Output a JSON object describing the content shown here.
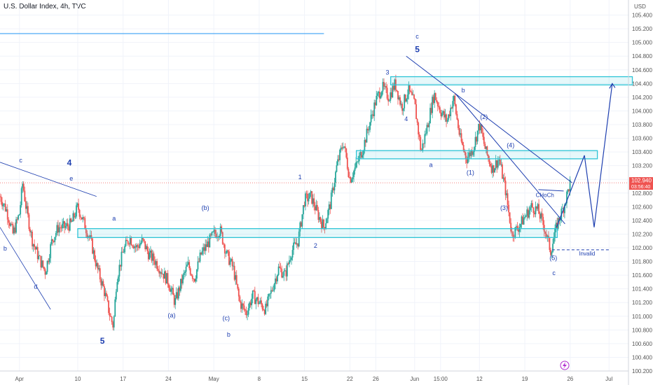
{
  "title": "U.S. Dollar Index, 4h, TVC",
  "currency_label": "USD",
  "price_badge": {
    "price": "102.940",
    "countdown": "03:56:40"
  },
  "colors": {
    "up": "#26a69a",
    "down": "#ef5350",
    "annotation": "#1e3fb0",
    "zone": "#2ec4d6"
  },
  "chart_data": {
    "type": "candlestick",
    "ylim": [
      100.2,
      105.6
    ],
    "yticks": [
      100.2,
      100.4,
      100.6,
      100.8,
      101.0,
      101.2,
      101.4,
      101.6,
      101.8,
      102.0,
      102.2,
      102.4,
      102.6,
      102.8,
      103.0,
      103.2,
      103.4,
      103.6,
      103.8,
      104.0,
      104.2,
      104.4,
      104.6,
      104.8,
      105.0,
      105.2,
      105.4
    ],
    "xticks": [
      {
        "label": "Apr",
        "x": 0
      },
      {
        "label": "10",
        "x": 9
      },
      {
        "label": "17",
        "x": 16
      },
      {
        "label": "24",
        "x": 23
      },
      {
        "label": "May",
        "x": 30
      },
      {
        "label": "8",
        "x": 37
      },
      {
        "label": "15",
        "x": 44
      },
      {
        "label": "22",
        "x": 51
      },
      {
        "label": "26",
        "x": 55
      },
      {
        "label": "Jun",
        "x": 61
      },
      {
        "label": "15:00",
        "x": 65
      },
      {
        "label": "12",
        "x": 71
      },
      {
        "label": "19",
        "x": 78
      },
      {
        "label": "26",
        "x": 85
      },
      {
        "label": "Jul",
        "x": 91
      }
    ],
    "xlim": [
      -3,
      94
    ],
    "path": [
      [
        -3,
        102.75
      ],
      [
        -2,
        102.55
      ],
      [
        -1,
        102.2
      ],
      [
        0,
        102.5
      ],
      [
        0.5,
        102.95
      ],
      [
        1,
        102.6
      ],
      [
        2,
        102.1
      ],
      [
        3,
        101.85
      ],
      [
        4,
        101.65
      ],
      [
        5,
        102.1
      ],
      [
        6,
        102.3
      ],
      [
        7,
        102.3
      ],
      [
        8,
        102.35
      ],
      [
        9,
        102.6
      ],
      [
        10,
        102.35
      ],
      [
        11,
        102.1
      ],
      [
        12,
        101.7
      ],
      [
        13,
        101.4
      ],
      [
        14,
        101.0
      ],
      [
        14.5,
        100.85
      ],
      [
        15,
        101.55
      ],
      [
        16,
        101.95
      ],
      [
        17,
        102.15
      ],
      [
        18,
        102.0
      ],
      [
        19,
        102.1
      ],
      [
        20,
        101.9
      ],
      [
        21,
        101.8
      ],
      [
        22,
        101.65
      ],
      [
        23,
        101.5
      ],
      [
        24,
        101.2
      ],
      [
        25,
        101.5
      ],
      [
        26,
        101.75
      ],
      [
        27,
        101.55
      ],
      [
        28,
        101.9
      ],
      [
        29,
        102.05
      ],
      [
        30,
        102.2
      ],
      [
        31,
        102.25
      ],
      [
        32,
        101.9
      ],
      [
        33,
        101.7
      ],
      [
        34,
        101.2
      ],
      [
        35,
        101.05
      ],
      [
        36,
        101.3
      ],
      [
        37,
        101.2
      ],
      [
        38,
        101.1
      ],
      [
        39,
        101.4
      ],
      [
        40,
        101.7
      ],
      [
        41,
        101.6
      ],
      [
        42,
        101.95
      ],
      [
        43,
        102.1
      ],
      [
        44,
        102.7
      ],
      [
        45,
        102.75
      ],
      [
        46,
        102.5
      ],
      [
        47,
        102.3
      ],
      [
        48,
        102.65
      ],
      [
        49,
        103.2
      ],
      [
        50,
        103.55
      ],
      [
        51,
        103.0
      ],
      [
        52,
        103.2
      ],
      [
        53,
        103.45
      ],
      [
        54,
        103.8
      ],
      [
        55,
        104.15
      ],
      [
        56,
        104.35
      ],
      [
        57,
        104.2
      ],
      [
        58,
        104.4
      ],
      [
        59,
        104.05
      ],
      [
        60,
        104.3
      ],
      [
        61,
        104.1
      ],
      [
        62,
        103.4
      ],
      [
        63,
        103.8
      ],
      [
        64,
        104.25
      ],
      [
        65,
        104.0
      ],
      [
        66,
        103.85
      ],
      [
        67,
        104.2
      ],
      [
        68,
        103.6
      ],
      [
        69,
        103.3
      ],
      [
        70,
        103.45
      ],
      [
        71,
        103.8
      ],
      [
        72,
        103.4
      ],
      [
        73,
        103.15
      ],
      [
        74,
        103.3
      ],
      [
        75,
        102.85
      ],
      [
        76,
        102.2
      ],
      [
        77,
        102.3
      ],
      [
        78,
        102.45
      ],
      [
        79,
        102.6
      ],
      [
        80,
        102.55
      ],
      [
        81,
        102.3
      ],
      [
        82,
        101.95
      ],
      [
        83,
        102.35
      ],
      [
        84,
        102.6
      ],
      [
        85,
        102.95
      ]
    ],
    "resistance_line": {
      "y": 105.13,
      "x_end": 47
    }
  },
  "zones": [
    {
      "x1": 57.3,
      "x2": 94.6,
      "y1": 104.38,
      "y2": 104.5
    },
    {
      "x1": 52,
      "x2": 89.2,
      "y1": 103.3,
      "y2": 103.42
    },
    {
      "x1": 9,
      "x2": 83,
      "y1": 102.15,
      "y2": 102.28
    }
  ],
  "wave_labels": [
    {
      "text": "c",
      "x": 0.2,
      "y": 103.25,
      "cls": "wave"
    },
    {
      "text": "4",
      "x": 7.7,
      "y": 103.2,
      "cls": "wave-big"
    },
    {
      "text": "e",
      "x": 8,
      "y": 102.98,
      "cls": "wave"
    },
    {
      "text": "b",
      "x": -2.2,
      "y": 101.96,
      "cls": "wave"
    },
    {
      "text": "d",
      "x": 2.5,
      "y": 101.4,
      "cls": "wave"
    },
    {
      "text": "a",
      "x": 14.6,
      "y": 102.4,
      "cls": "wave"
    },
    {
      "text": "5",
      "x": 12.8,
      "y": 100.6,
      "cls": "wave-big"
    },
    {
      "text": "(b)",
      "x": 28.7,
      "y": 102.55,
      "cls": "wave"
    },
    {
      "text": "(a)",
      "x": 23.5,
      "y": 100.98,
      "cls": "wave"
    },
    {
      "text": "(c)",
      "x": 31.9,
      "y": 100.94,
      "cls": "wave"
    },
    {
      "text": "b",
      "x": 32.3,
      "y": 100.7,
      "cls": "wave"
    },
    {
      "text": "1",
      "x": 43.3,
      "y": 103.0,
      "cls": "wave"
    },
    {
      "text": "2",
      "x": 45.7,
      "y": 102.0,
      "cls": "wave"
    },
    {
      "text": "3",
      "x": 56.8,
      "y": 104.53,
      "cls": "wave"
    },
    {
      "text": "4",
      "x": 59.7,
      "y": 103.85,
      "cls": "wave"
    },
    {
      "text": "a",
      "x": 63.5,
      "y": 103.18,
      "cls": "wave"
    },
    {
      "text": "c",
      "x": 61.4,
      "y": 105.06,
      "cls": "wave"
    },
    {
      "text": "5",
      "x": 61.4,
      "y": 104.86,
      "cls": "wave-big"
    },
    {
      "text": "b",
      "x": 68.5,
      "y": 104.27,
      "cls": "wave"
    },
    {
      "text": "(2)",
      "x": 71.7,
      "y": 103.88,
      "cls": "wave"
    },
    {
      "text": "(1)",
      "x": 69.6,
      "y": 103.07,
      "cls": "wave"
    },
    {
      "text": "(4)",
      "x": 75.8,
      "y": 103.47,
      "cls": "wave"
    },
    {
      "text": "(3)",
      "x": 74.8,
      "y": 102.55,
      "cls": "wave"
    },
    {
      "text": "(5)",
      "x": 82.4,
      "y": 101.82,
      "cls": "wave"
    },
    {
      "text": "c",
      "x": 82.5,
      "y": 101.6,
      "cls": "wave"
    }
  ],
  "choch_label": "CHoCh",
  "invalid_label": "Invalid",
  "projection": [
    [
      82.9,
      102.3
    ],
    [
      87.2,
      103.35
    ],
    [
      88.7,
      102.3
    ],
    [
      91.5,
      104.4
    ]
  ],
  "trendline_upper": [
    [
      59.7,
      104.8
    ],
    [
      85.3,
      102.95
    ]
  ],
  "trendline_lower": [
    [
      67.3,
      104.25
    ],
    [
      84.2,
      102.35
    ]
  ],
  "wedge_top": [
    [
      -3,
      103.25
    ],
    [
      11.9,
      102.75
    ]
  ],
  "wedge_bottom": [
    [
      -3,
      102.3
    ],
    [
      4.8,
      101.1
    ]
  ],
  "choch_line": [
    [
      80.1,
      102.85
    ],
    [
      84,
      102.83
    ]
  ],
  "invalid_line": [
    [
      82.2,
      101.97
    ],
    [
      91,
      101.97
    ]
  ]
}
